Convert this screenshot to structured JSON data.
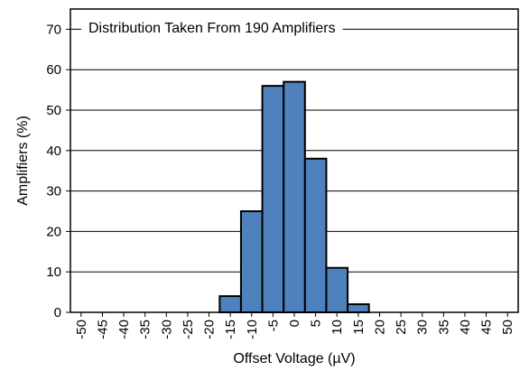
{
  "chart_data": {
    "type": "bar",
    "annotation": "Distribution Taken From 190 Amplifiers",
    "xlabel": "Offset Voltage (µV)",
    "ylabel": "Amplifiers (%)",
    "ylim": [
      0,
      75
    ],
    "y_ticks": [
      0,
      10,
      20,
      30,
      40,
      50,
      60,
      70
    ],
    "x_ticks": [
      "-50",
      "-45",
      "-40",
      "-35",
      "-30",
      "-25",
      "-20",
      "-15",
      "-10",
      "-5",
      "0",
      "5",
      "10",
      "15",
      "20",
      "25",
      "30",
      "35",
      "40",
      "45",
      "50"
    ],
    "bins": [
      {
        "from": -17.5,
        "to": -12.5,
        "value": 4
      },
      {
        "from": -12.5,
        "to": -7.5,
        "value": 25
      },
      {
        "from": -7.5,
        "to": -2.5,
        "value": 56
      },
      {
        "from": -2.5,
        "to": 2.5,
        "value": 57
      },
      {
        "from": 2.5,
        "to": 7.5,
        "value": 38
      },
      {
        "from": 7.5,
        "to": 12.5,
        "value": 11
      },
      {
        "from": 12.5,
        "to": 17.5,
        "value": 2
      }
    ],
    "grid": true,
    "bar_color": "#4f81bd"
  }
}
